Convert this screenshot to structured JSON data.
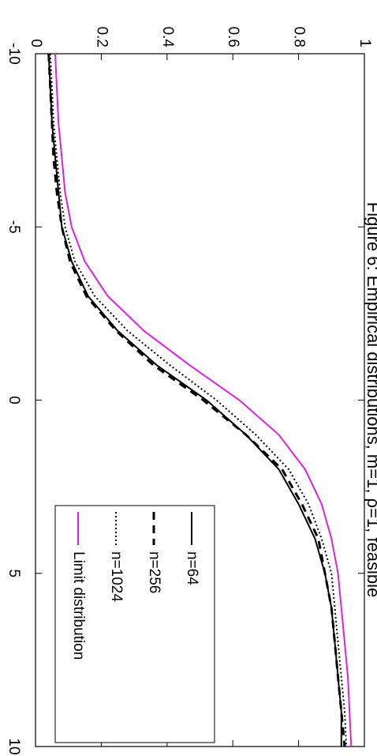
{
  "chart_data": {
    "type": "line",
    "title": "Figure 6: Empirical distributions, m=1, ρ=1, feasible",
    "x": [
      -10,
      -9,
      -8,
      -7,
      -6,
      -5,
      -4,
      -3,
      -2,
      -1,
      0,
      1,
      2,
      3,
      4,
      5,
      6,
      7,
      8,
      9,
      10
    ],
    "series": [
      {
        "name": "n=64",
        "color": "#000000",
        "dash": "solid",
        "values": [
          0.04,
          0.045,
          0.05,
          0.06,
          0.07,
          0.08,
          0.11,
          0.16,
          0.25,
          0.37,
          0.52,
          0.64,
          0.74,
          0.8,
          0.85,
          0.88,
          0.9,
          0.91,
          0.92,
          0.93,
          0.93
        ]
      },
      {
        "name": "n=256",
        "color": "#000000",
        "dash": "dashed",
        "values": [
          0.04,
          0.045,
          0.05,
          0.055,
          0.065,
          0.08,
          0.105,
          0.155,
          0.245,
          0.36,
          0.51,
          0.64,
          0.75,
          0.81,
          0.86,
          0.88,
          0.9,
          0.91,
          0.92,
          0.93,
          0.94
        ]
      },
      {
        "name": "n=1024",
        "color": "#000000",
        "dash": "dotted",
        "values": [
          0.045,
          0.05,
          0.055,
          0.065,
          0.075,
          0.09,
          0.12,
          0.18,
          0.28,
          0.41,
          0.55,
          0.67,
          0.77,
          0.83,
          0.87,
          0.9,
          0.91,
          0.92,
          0.93,
          0.94,
          0.945
        ]
      },
      {
        "name": "Limit distribution",
        "color": "#e020e0",
        "dash": "solid",
        "values": [
          0.06,
          0.065,
          0.07,
          0.08,
          0.09,
          0.11,
          0.15,
          0.22,
          0.33,
          0.47,
          0.62,
          0.74,
          0.82,
          0.87,
          0.9,
          0.92,
          0.93,
          0.94,
          0.95,
          0.955,
          0.96
        ]
      }
    ],
    "xlim": [
      -10,
      10
    ],
    "xticks": [
      -10,
      -5,
      0,
      5,
      10
    ],
    "ylim": [
      0,
      1
    ],
    "yticks": [
      0,
      0.2,
      0.4,
      0.6,
      0.8,
      1
    ],
    "legend": "lower right",
    "grid": false
  }
}
